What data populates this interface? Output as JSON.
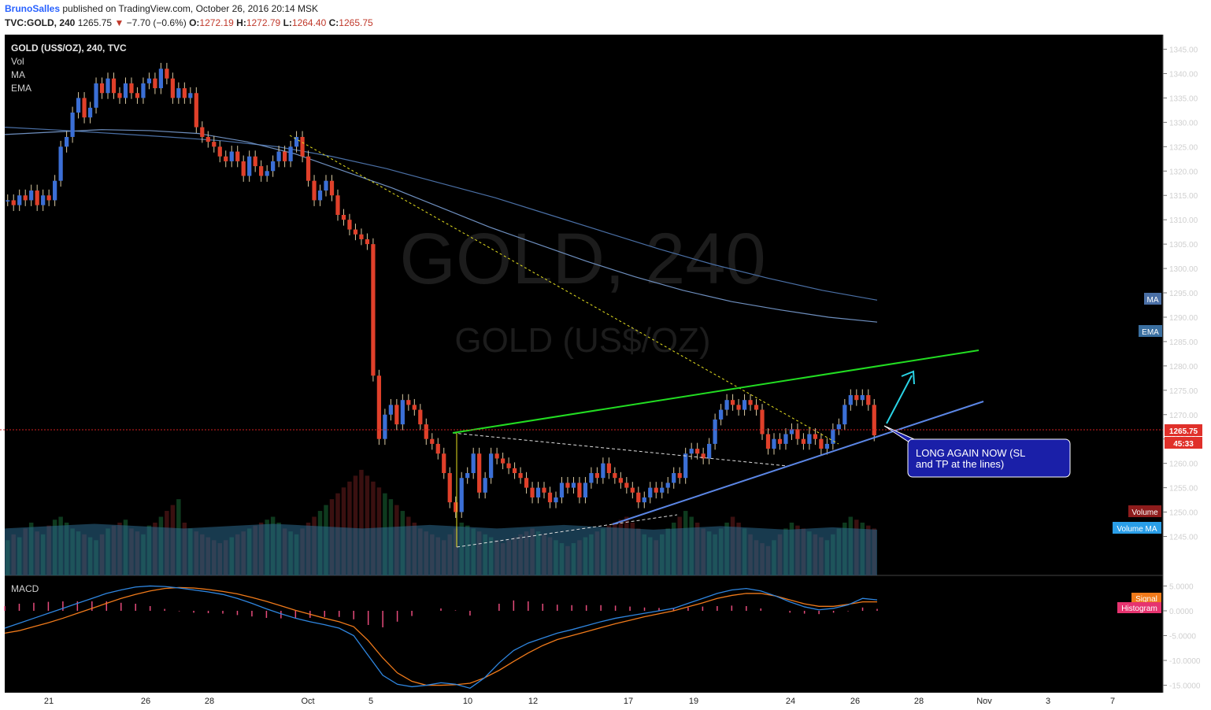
{
  "header": {
    "user": "BrunoSalles",
    "published": "published on TradingView.com, October 26, 2016 20:14 MSK",
    "symbol": "TVC:GOLD, 240",
    "last": "1265.75",
    "change_arrow": "▼",
    "change": "−7.70 (−0.6%)",
    "o_label": "O:",
    "o": "1272.19",
    "h_label": "H:",
    "h": "1272.79",
    "l_label": "L:",
    "l": "1264.40",
    "c_label": "C:",
    "c": "1265.75"
  },
  "legend": {
    "title": "GOLD (US$/OZ), 240, TVC",
    "items": [
      "Vol",
      "MA",
      "EMA"
    ],
    "macd": "MACD"
  },
  "watermark": {
    "big": "GOLD, 240",
    "small": "GOLD (US$/OZ)"
  },
  "annotation": {
    "line1": "LONG AGAIN NOW (SL",
    "line2": "and TP at the lines)"
  },
  "badges": {
    "ma": "MA",
    "ema": "EMA",
    "price": "1265.75",
    "countdown": "45:33",
    "volume": "Volume",
    "volume_ma": "Volume MA",
    "signal": "Signal",
    "histogram": "Histogram"
  },
  "colors": {
    "background": "#000000",
    "up_candle": "#3b6fd6",
    "down_candle": "#e0402a",
    "support_line": "#5b86e5",
    "resistance_line": "#22dd22",
    "ma_line": "#4a6fa5",
    "macd_line": "#2f86e0",
    "signal_line": "#f07a1a",
    "histogram": "#e64b7b",
    "volume_ma": "#2b6a8e",
    "arrow": "#2ad4e6",
    "annotation_box": "#1a1fa8",
    "price_line": "#d02020",
    "trendline_dotted": "#e6e020"
  },
  "chart_data": {
    "type": "candlestick",
    "title": "GOLD (US$/OZ), 240, TVC",
    "ylim": [
      1237,
      1348
    ],
    "yticks": [
      1245,
      1250,
      1255,
      1260,
      1265,
      1270,
      1275,
      1280,
      1285,
      1290,
      1295,
      1300,
      1305,
      1310,
      1315,
      1320,
      1325,
      1330,
      1335,
      1340,
      1345
    ],
    "y_tick_labels": [
      "1245.00",
      "1250.00",
      "1255.00",
      "1260.00",
      "1265.00",
      "1270.00",
      "1275.00",
      "1280.00",
      "1285.00",
      "1290.00",
      "1295.00",
      "1300.00",
      "1305.00",
      "1310.00",
      "1315.00",
      "1320.00",
      "1325.00",
      "1330.00",
      "1335.00",
      "1340.00",
      "1345.00"
    ],
    "x_tick_labels": [
      "21",
      "26",
      "28",
      "Oct",
      "5",
      "10",
      "12",
      "17",
      "19",
      "24",
      "26",
      "28",
      "Nov",
      "3",
      "7"
    ],
    "current_price": 1265.75,
    "closes": [
      1314,
      1313,
      1315,
      1314,
      1316,
      1313,
      1315,
      1314,
      1318,
      1325,
      1327,
      1332,
      1335,
      1331,
      1333,
      1338,
      1336,
      1339,
      1336,
      1335,
      1338,
      1336,
      1335,
      1338,
      1339,
      1337,
      1341,
      1339,
      1335,
      1337,
      1335,
      1336,
      1329,
      1327,
      1326,
      1325,
      1323,
      1322,
      1324,
      1322,
      1319,
      1323,
      1321,
      1319,
      1320,
      1322,
      1324,
      1322,
      1325,
      1327,
      1323,
      1318,
      1314,
      1316,
      1318,
      1315,
      1311,
      1310,
      1308,
      1307,
      1306,
      1305,
      1278,
      1265,
      1270,
      1272,
      1268,
      1273,
      1272,
      1271,
      1268,
      1265,
      1264,
      1262,
      1258,
      1252,
      1250,
      1257,
      1258,
      1262,
      1254,
      1257,
      1262,
      1261,
      1260,
      1259,
      1258,
      1257,
      1255,
      1253,
      1255,
      1254,
      1252,
      1253,
      1256,
      1255,
      1256,
      1253,
      1256,
      1258,
      1257,
      1260,
      1258,
      1257,
      1256,
      1255,
      1254,
      1252,
      1253,
      1255,
      1254,
      1255,
      1256,
      1258,
      1257,
      1262,
      1263,
      1262,
      1261,
      1264,
      1269,
      1271,
      1273,
      1272,
      1271,
      1273,
      1272,
      1271,
      1266,
      1263,
      1265,
      1264,
      1266,
      1267,
      1265,
      1264,
      1266,
      1265,
      1263,
      1264,
      1267,
      1268,
      1272,
      1274,
      1273,
      1274,
      1272,
      1265.75
    ],
    "ma": [
      1329,
      1328.4,
      1327.7,
      1327,
      1326.2,
      1325,
      1323,
      1320.5,
      1317.5,
      1314.5,
      1311,
      1307.5,
      1304,
      1300.8,
      1298,
      1295.5,
      1293.5
    ],
    "ema": [
      1327.5,
      1328,
      1328.5,
      1328.3,
      1327.7,
      1326,
      1323.5,
      1320,
      1316.5,
      1312.5,
      1308.5,
      1305,
      1301.5,
      1298.3,
      1295.5,
      1293.2,
      1291.5,
      1290,
      1289
    ],
    "volume": [
      60,
      70,
      65,
      80,
      90,
      75,
      70,
      85,
      95,
      100,
      90,
      80,
      75,
      70,
      65,
      60,
      70,
      80,
      85,
      90,
      95,
      80,
      75,
      70,
      85,
      90,
      100,
      110,
      120,
      130,
      90,
      80,
      75,
      70,
      65,
      60,
      55,
      60,
      65,
      70,
      75,
      80,
      85,
      90,
      95,
      100,
      90,
      80,
      75,
      70,
      80,
      90,
      100,
      110,
      120,
      130,
      140,
      150,
      160,
      170,
      180,
      170,
      160,
      150,
      140,
      130,
      120,
      110,
      100,
      90,
      80,
      75,
      70,
      65,
      60,
      70,
      80,
      90,
      85,
      80,
      75,
      70,
      65,
      60,
      55,
      60,
      65,
      70,
      75,
      80,
      75,
      70,
      65,
      60,
      55,
      50,
      55,
      60,
      65,
      70,
      75,
      80,
      85,
      90,
      95,
      100,
      90,
      80,
      70,
      65,
      60,
      70,
      80,
      90,
      100,
      110,
      100,
      90,
      80,
      75,
      70,
      80,
      90,
      100,
      90,
      80,
      70,
      60,
      55,
      50,
      60,
      70,
      80,
      90,
      85,
      80,
      75,
      70,
      65,
      60,
      70,
      80,
      90,
      100,
      95,
      90,
      85,
      80
    ],
    "volume_ma": [
      80,
      82,
      84,
      86,
      88,
      86,
      84,
      82,
      80,
      82,
      84,
      86,
      88,
      86,
      84,
      82,
      80,
      82,
      84,
      86,
      84,
      82,
      80,
      82,
      84,
      86,
      84,
      82,
      80,
      78,
      80,
      82,
      84,
      82,
      80,
      78,
      80,
      82,
      80,
      78
    ],
    "macd": {
      "ylim": [
        -16.5,
        6.5
      ],
      "yticks": [
        5,
        0,
        -5,
        -10,
        -15
      ],
      "y_tick_labels": [
        "5.0000",
        "0.0000",
        "-5.0000",
        "-10.0000",
        "-15.0000"
      ],
      "macd": [
        -3.5,
        -2.5,
        -1.5,
        -0.5,
        0.5,
        1.5,
        2.5,
        3.5,
        4.2,
        4.8,
        5,
        4.9,
        4.6,
        4.2,
        3.8,
        3.3,
        2.5,
        1.5,
        0.4,
        -0.6,
        -1.5,
        -2.2,
        -2.8,
        -3.5,
        -5,
        -9,
        -13,
        -14.8,
        -15.3,
        -15,
        -14.5,
        -14.8,
        -15.6,
        -13.5,
        -10.5,
        -8,
        -6.5,
        -5.5,
        -4.5,
        -3.8,
        -3,
        -2.2,
        -1.5,
        -1,
        -0.5,
        0,
        0.5,
        1.5,
        2.5,
        3.5,
        4.2,
        4.5,
        4,
        3,
        1.8,
        0.8,
        0.2,
        0.5,
        1.2,
        2.5,
        2.2
      ],
      "signal": [
        -4.5,
        -4,
        -3.2,
        -2.4,
        -1.5,
        -0.5,
        0.5,
        1.5,
        2.5,
        3.3,
        4,
        4.5,
        4.7,
        4.6,
        4.3,
        3.9,
        3.4,
        2.7,
        1.9,
        1,
        0.1,
        -0.7,
        -1.5,
        -2.2,
        -3.2,
        -6,
        -9.5,
        -12.5,
        -14.2,
        -15,
        -15,
        -14.9,
        -14.6,
        -13.5,
        -12,
        -10.2,
        -8.5,
        -7,
        -5.8,
        -5,
        -4.2,
        -3.4,
        -2.6,
        -1.9,
        -1.2,
        -0.6,
        0,
        0.8,
        1.6,
        2.5,
        3.1,
        3.5,
        3.5,
        3,
        2.2,
        1.4,
        0.9,
        0.9,
        1.3,
        1.8,
        1.8
      ]
    }
  }
}
